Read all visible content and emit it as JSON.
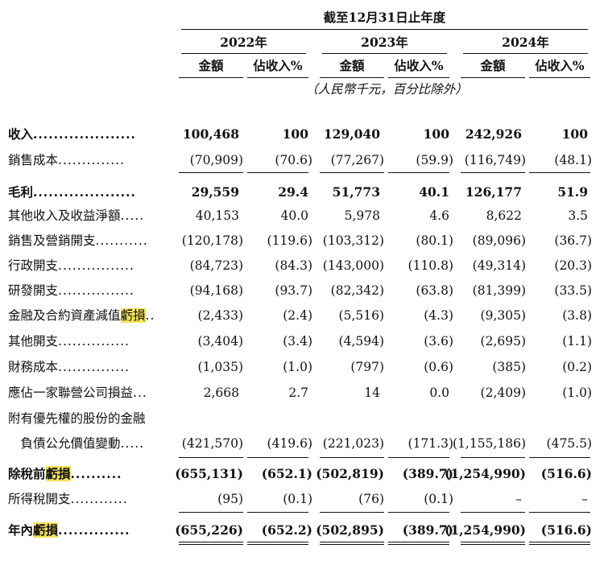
{
  "header": {
    "period": "截至12月31日止年度",
    "years": [
      "2022年",
      "2023年",
      "2024年"
    ],
    "col_amount": "金額",
    "col_pct": "佔收入%",
    "unit_note": "（人民幣千元，百分比除外）"
  },
  "rows": [
    {
      "label": "收入",
      "dots": "....................",
      "bold": true,
      "values": [
        "100,468",
        "100",
        "129,040",
        "100",
        "242,926",
        "100"
      ]
    },
    {
      "label": "銷售成本",
      "dots": "..............",
      "bold": false,
      "values": [
        "(70,909)",
        "(70.6)",
        "(77,267)",
        "(59.9)",
        "(116,749)",
        "(48.1)"
      ]
    },
    {
      "label": "毛利",
      "dots": "....................",
      "bold": true,
      "values": [
        "29,559",
        "29.4",
        "51,773",
        "40.1",
        "126,177",
        "51.9"
      ]
    },
    {
      "label": "其他收入及收益淨額",
      "dots": ".....",
      "bold": false,
      "values": [
        "40,153",
        "40.0",
        "5,978",
        "4.6",
        "8,622",
        "3.5"
      ]
    },
    {
      "label": "銷售及營銷開支",
      "dots": "...........",
      "bold": false,
      "values": [
        "(120,178)",
        "(119.6)",
        "(103,312)",
        "(80.1)",
        "(89,096)",
        "(36.7)"
      ]
    },
    {
      "label": "行政開支",
      "dots": "................",
      "bold": false,
      "values": [
        "(84,723)",
        "(84.3)",
        "(143,000)",
        "(110.8)",
        "(49,314)",
        "(20.3)"
      ]
    },
    {
      "label": "研發開支",
      "dots": "................",
      "bold": false,
      "values": [
        "(94,168)",
        "(93.7)",
        "(82,342)",
        "(63.8)",
        "(81,399)",
        "(33.5)"
      ]
    },
    {
      "label": "金融及合約資產減值",
      "hl": "虧損",
      "dots": "..",
      "bold": false,
      "values": [
        "(2,433)",
        "(2.4)",
        "(5,516)",
        "(4.3)",
        "(9,305)",
        "(3.8)"
      ]
    },
    {
      "label": "其他開支",
      "dots": "...............",
      "bold": false,
      "values": [
        "(3,404)",
        "(3.4)",
        "(4,594)",
        "(3.6)",
        "(2,695)",
        "(1.1)"
      ]
    },
    {
      "label": "財務成本",
      "dots": "...............",
      "bold": false,
      "values": [
        "(1,035)",
        "(1.0)",
        "(797)",
        "(0.6)",
        "(385)",
        "(0.2)"
      ]
    },
    {
      "label": "應佔一家聯營公司損益",
      "dots": "...",
      "bold": false,
      "values": [
        "2,668",
        "2.7",
        "14",
        "0.0",
        "(2,409)",
        "(1.0)"
      ]
    },
    {
      "label": "附有優先權的股份的金融",
      "dots": "",
      "bold": false,
      "values": [
        "",
        "",
        "",
        "",
        "",
        ""
      ]
    },
    {
      "label": "　負債公允價值變動",
      "dots": ".....",
      "bold": false,
      "values": [
        "(421,570)",
        "(419.6)",
        "(221,023)",
        "(171.3)",
        "(1,155,186)",
        "(475.5)"
      ]
    },
    {
      "label": "除稅前",
      "hl": "虧損",
      "dots": "..........",
      "bold": true,
      "values": [
        "(655,131)",
        "(652.1)",
        "(502,819)",
        "(389.7)",
        "(1,254,990)",
        "(516.6)"
      ]
    },
    {
      "label": "所得稅開支",
      "dots": "............",
      "bold": false,
      "values": [
        "(95)",
        "(0.1)",
        "(76)",
        "(0.1)",
        "–",
        "–"
      ]
    },
    {
      "label": "年內",
      "hl": "虧損",
      "dots": "..............",
      "bold": true,
      "values": [
        "(655,226)",
        "(652.2)",
        "(502,895)",
        "(389.7)",
        "(1,254,990)",
        "(516.6)"
      ]
    }
  ]
}
